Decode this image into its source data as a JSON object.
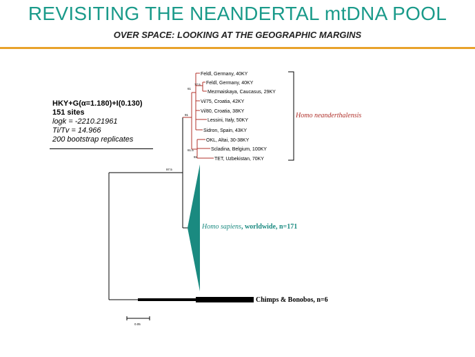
{
  "header": {
    "title": "REVISITING THE NEANDERTAL mtDNA POOL",
    "subtitle": "OVER SPACE: LOOKING AT THE GEOGRAPHIC MARGINS"
  },
  "model": {
    "line1": "HKY+G(α=1.180)+I(0.130)",
    "line2": "151 sites",
    "line3": "logk = -2210.21961",
    "line4": "Ti/Tv = 14.966",
    "line5": "200 bootstrap replicates"
  },
  "tree": {
    "leaves": [
      "Feldl, Germany, 40KY",
      "Feldl, Germany, 40KY",
      "Mezmaiskaya, Caucasus, 29KY",
      "Vi/75, Croatia, 42KY",
      "Vi/80, Croatia, 38KY",
      "Lessini, Italy, 50KY",
      "Sidron, Spain, 43KY",
      "OKL, Altai, 30-38KY",
      "Scladina, Belgium, 100KY",
      "TET, Uzbekistan, 70KY"
    ],
    "bootstrap": [
      "77.5",
      "61",
      "91",
      "61.5",
      "91",
      "97.5"
    ],
    "groups": {
      "neanderthal": "Homo neanderthalensis",
      "sapiens_name": "Homo sapiens",
      "sapiens_rest": ", worldwide, n=171",
      "chimps": "Chimps & Bonobos, n=6"
    },
    "scale_label": "0.05"
  },
  "colors": {
    "title": "#1a9a8a",
    "rule": "#e8a22a",
    "neanderthal": "#b0302a",
    "sapiens": "#1a8a80"
  }
}
